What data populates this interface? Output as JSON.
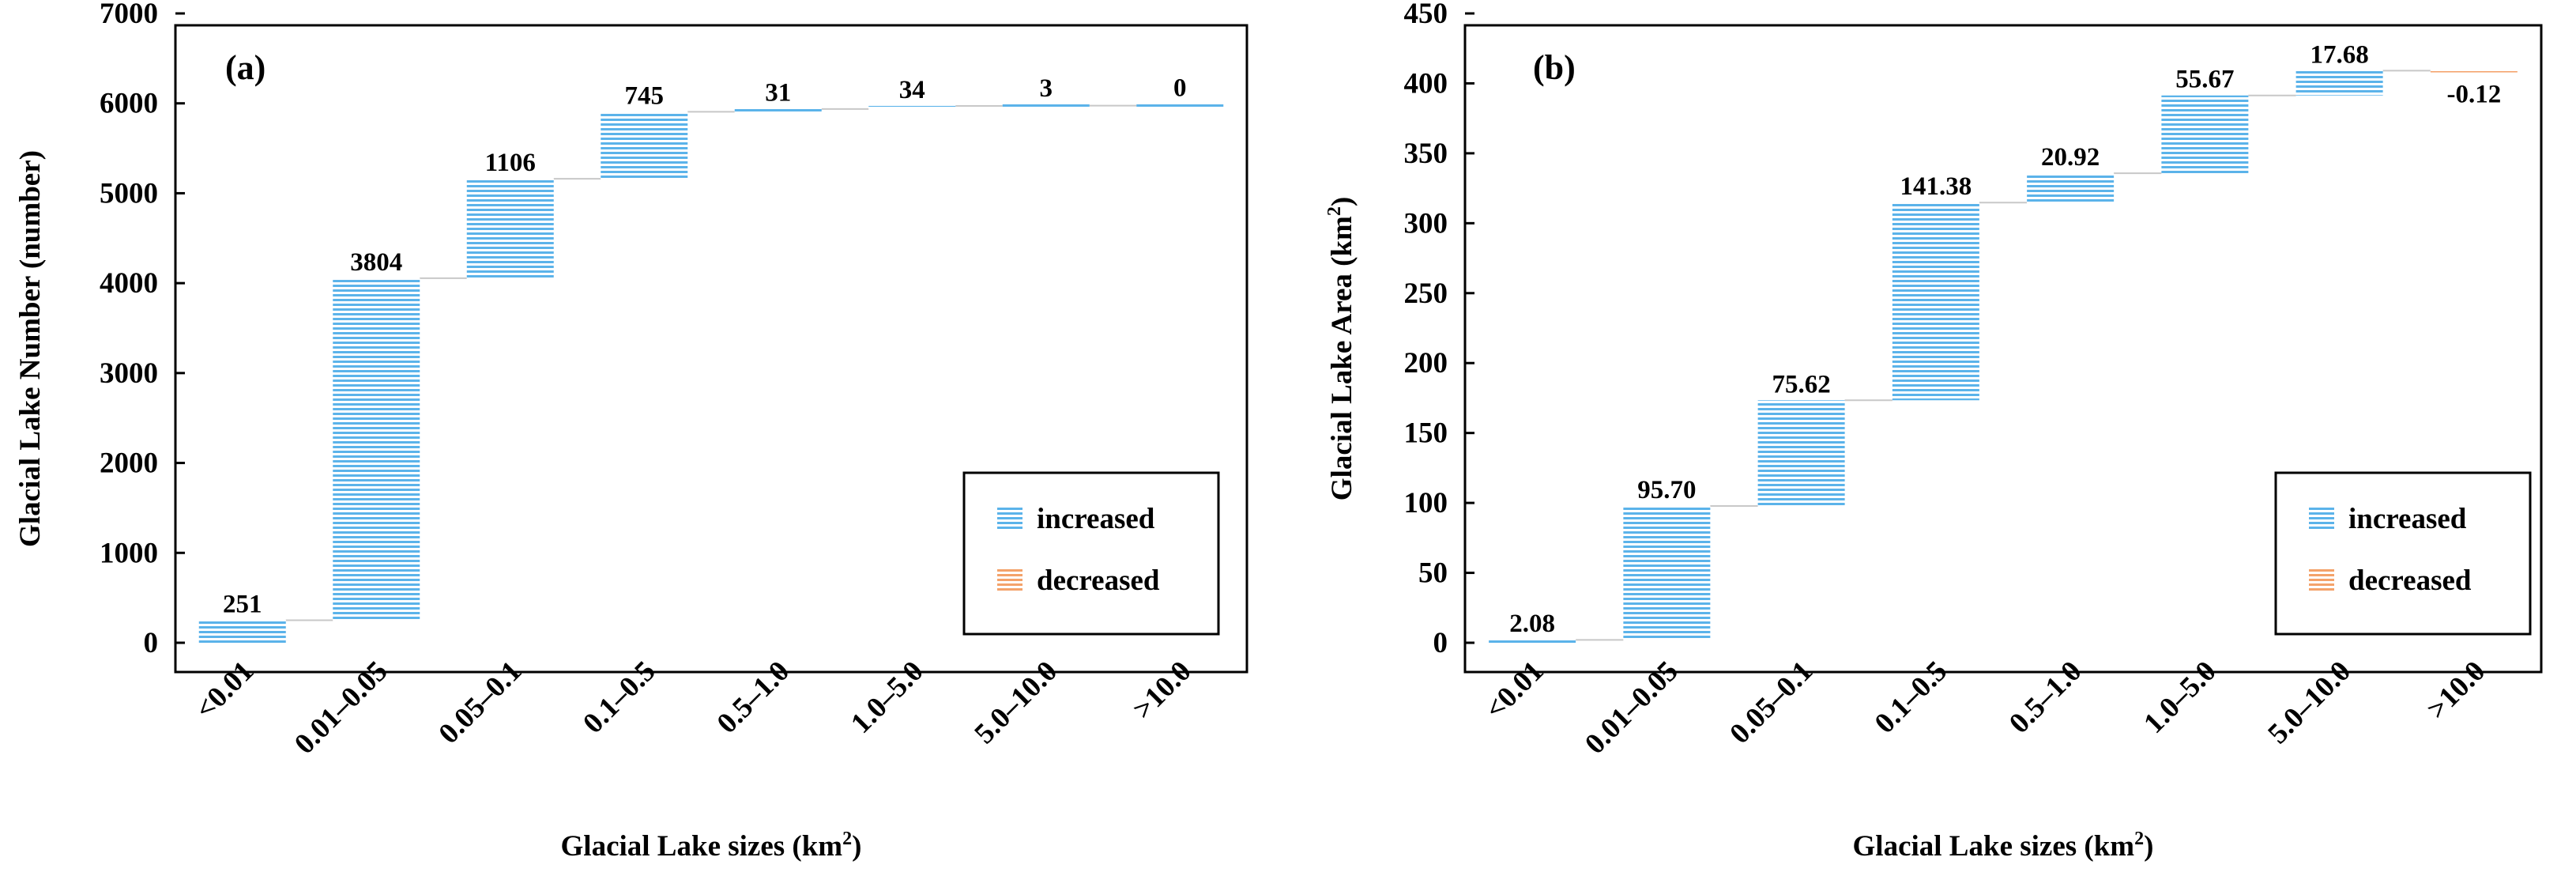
{
  "chart_data": [
    {
      "type": "waterfall",
      "panel_label": "(a)",
      "categories": [
        "<0.01",
        "0.01–0.05",
        "0.05–0.1",
        "0.1–0.5",
        "0.5–1.0",
        "1.0–5.0",
        "5.0–10.0",
        ">10.0"
      ],
      "values": [
        251,
        3804,
        1106,
        745,
        31,
        34,
        3,
        0
      ],
      "value_labels": [
        "251",
        "3804",
        "1106",
        "745",
        "31",
        "34",
        "3",
        "0"
      ],
      "ylabel": "Glacial Lake Number (number)",
      "xlabel_main": "Glacial Lake sizes (km",
      "xlabel_sup": "2",
      "xlabel_close": ")",
      "ylim": [
        0,
        7000
      ],
      "yticks": [
        0,
        1000,
        2000,
        3000,
        4000,
        5000,
        6000,
        7000
      ],
      "legend": {
        "position": "bottom-right",
        "items": [
          {
            "label": "increased",
            "color": "#5bb3ea"
          },
          {
            "label": "decreased",
            "color": "#f4a26a"
          }
        ]
      }
    },
    {
      "type": "waterfall",
      "panel_label": "(b)",
      "categories": [
        "<0.01",
        "0.01–0.05",
        "0.05–0.1",
        "0.1–0.5",
        "0.5–1.0",
        "1.0–5.0",
        "5.0–10.0",
        ">10.0"
      ],
      "values": [
        2.08,
        95.7,
        75.62,
        141.38,
        20.92,
        55.67,
        17.68,
        -0.12
      ],
      "value_labels": [
        "2.08",
        "95.70",
        "75.62",
        "141.38",
        "20.92",
        "55.67",
        "17.68",
        "-0.12"
      ],
      "ylabel_main": "Glacial Lake Area (km",
      "ylabel_sup": "2",
      "ylabel_close": ")",
      "xlabel_main": "Glacial Lake sizes (km",
      "xlabel_sup": "2",
      "xlabel_close": ")",
      "ylim": [
        0,
        450
      ],
      "yticks": [
        0,
        50,
        100,
        150,
        200,
        250,
        300,
        350,
        400,
        450
      ],
      "legend": {
        "position": "bottom-right",
        "items": [
          {
            "label": "increased",
            "color": "#5bb3ea"
          },
          {
            "label": "decreased",
            "color": "#f4a26a"
          }
        ]
      }
    }
  ]
}
